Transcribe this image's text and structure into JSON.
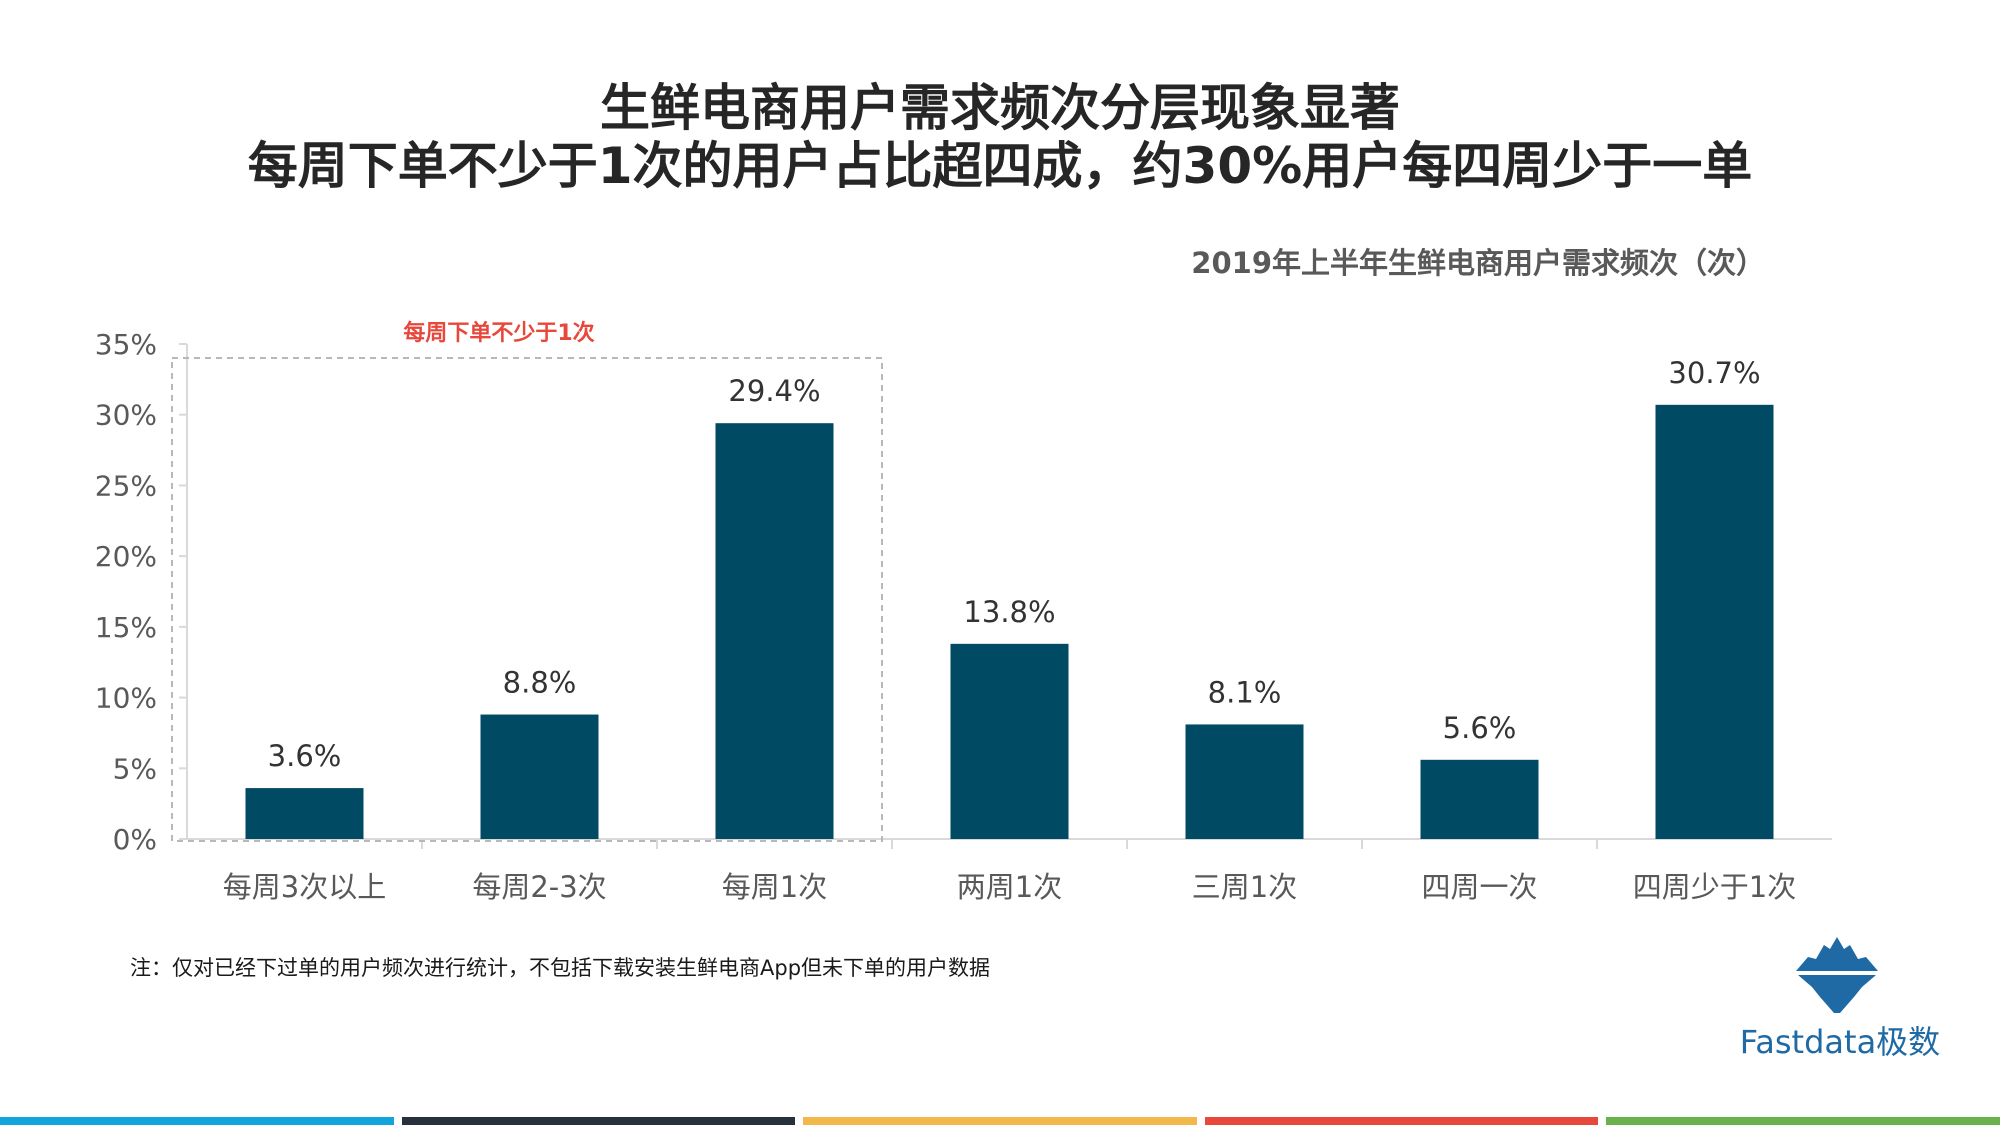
{
  "header": {
    "title_line1": "生鲜电商用户需求频次分层现象显著",
    "title_line2": "每周下单不少于1次的用户占比超四成，约30%用户每四周少于一单",
    "subtitle": "2019年上半年生鲜电商用户需求频次（次）"
  },
  "chart_data": {
    "type": "bar",
    "title": "2019年上半年生鲜电商用户需求频次（次）",
    "categories": [
      "每周3次以上",
      "每周2-3次",
      "每周1次",
      "两周1次",
      "三周1次",
      "四周一次",
      "四周少于1次"
    ],
    "values": [
      3.6,
      8.8,
      29.4,
      13.8,
      8.1,
      5.6,
      30.7
    ],
    "value_labels": [
      "3.6%",
      "8.8%",
      "29.4%",
      "13.8%",
      "8.1%",
      "5.6%",
      "30.7%"
    ],
    "y_ticks": [
      "0%",
      "5%",
      "10%",
      "15%",
      "20%",
      "25%",
      "30%",
      "35%"
    ],
    "ylim": [
      0,
      35
    ],
    "bar_color": "#004a63",
    "grid": false,
    "legend": "none",
    "annotation": {
      "label": "每周下单不少于1次",
      "covers_categories": [
        "每周3次以上",
        "每周2-3次",
        "每周1次"
      ],
      "color": "#e8473b"
    }
  },
  "note": "注：仅对已经下过单的用户频次进行统计，不包括下载安装生鲜电商App但未下单的用户数据",
  "logo": {
    "text": "Fastdata极数",
    "icon": "iceberg-icon",
    "color": "#1f6aa5"
  },
  "footer_colors": [
    "#13a3dd",
    "#26313d",
    "#f2b84b",
    "#e8473b",
    "#6ab04c"
  ]
}
